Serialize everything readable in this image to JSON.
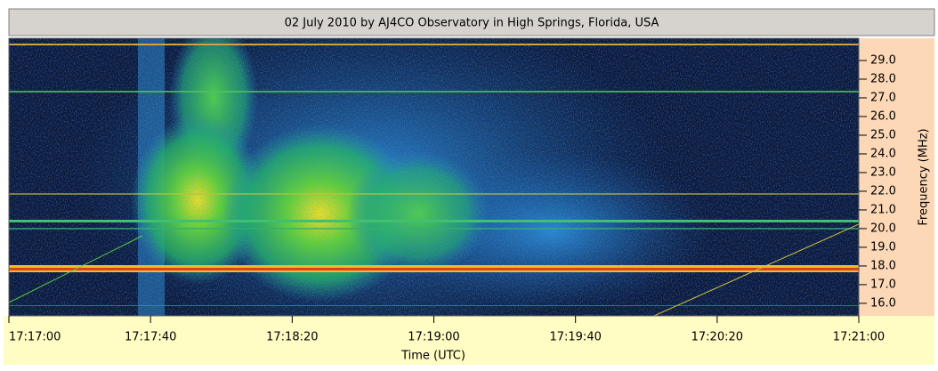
{
  "chart_data": {
    "type": "spectrogram",
    "title": "02 July 2010 by  AJ4CO Observatory in High Springs, Florida, USA",
    "xlabel": "Time (UTC)",
    "ylabel": "Frequency (MHz)",
    "xlim": [
      "17:17:00",
      "17:21:00"
    ],
    "xticks": [
      "17:17:00",
      "17:17:40",
      "17:18:20",
      "17:19:00",
      "17:19:40",
      "17:20:20",
      "17:21:00"
    ],
    "ylim": [
      15.33,
      30.19
    ],
    "yticks": [
      {
        "value": 16,
        "label": "16.0"
      },
      {
        "value": 17,
        "label": "17.0"
      },
      {
        "value": 18,
        "label": "18.0"
      },
      {
        "value": 19,
        "label": "19.0"
      },
      {
        "value": 20,
        "label": "20.0"
      },
      {
        "value": 21,
        "label": "21.0"
      },
      {
        "value": 22,
        "label": "22.0"
      },
      {
        "value": 23,
        "label": "23.0"
      },
      {
        "value": 24,
        "label": "24.0"
      },
      {
        "value": 25,
        "label": "25.0"
      },
      {
        "value": 26,
        "label": "26.0"
      },
      {
        "value": 27,
        "label": "27.0"
      },
      {
        "value": 28,
        "label": "28.0"
      },
      {
        "value": 29,
        "label": "29.0"
      }
    ]
  }
}
